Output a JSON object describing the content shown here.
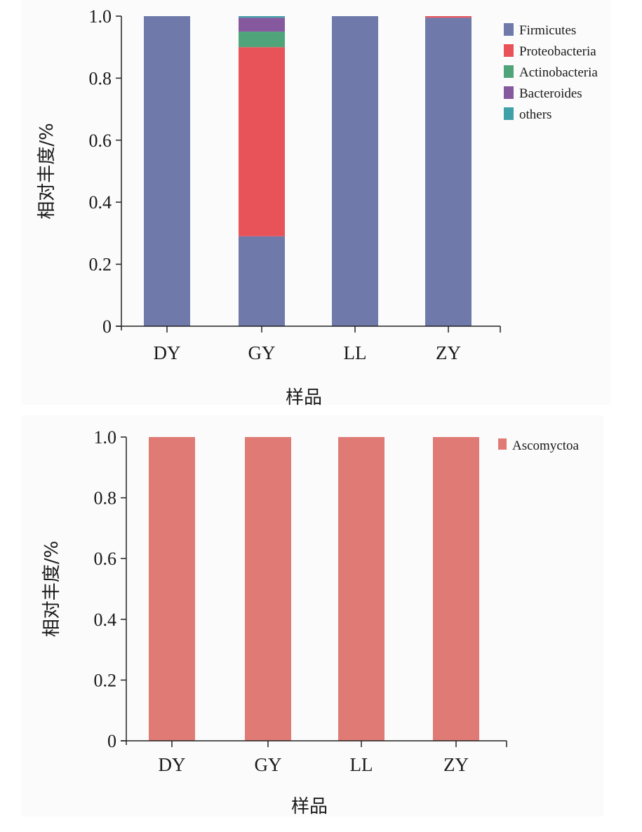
{
  "chart_data": [
    {
      "type": "bar",
      "stacked": true,
      "title": "",
      "xlabel": "样品",
      "ylabel": "相对丰度/%",
      "ylim": [
        0,
        1.0
      ],
      "yticks": [
        "0",
        "0.2",
        "0.4",
        "0.6",
        "0.8",
        "1.0"
      ],
      "ytick_values": [
        0,
        0.2,
        0.4,
        0.6,
        0.8,
        1.0
      ],
      "categories": [
        "DY",
        "GY",
        "LL",
        "ZY"
      ],
      "legend_position": "top-right",
      "grid": false,
      "series": [
        {
          "name": "Firmicutes",
          "color": "#6f7aab",
          "values": [
            1.0,
            0.29,
            1.0,
            0.995
          ]
        },
        {
          "name": "Proteobacteria",
          "color": "#e8535a",
          "values": [
            0,
            0.61,
            0,
            0.005
          ]
        },
        {
          "name": "Actinobacteria",
          "color": "#4fa47a",
          "values": [
            0,
            0.05,
            0,
            0
          ]
        },
        {
          "name": "Bacteroides",
          "color": "#86599f",
          "values": [
            0,
            0.045,
            0,
            0
          ]
        },
        {
          "name": "others",
          "color": "#3fa0a8",
          "values": [
            0,
            0.005,
            0,
            0
          ]
        }
      ]
    },
    {
      "type": "bar",
      "stacked": true,
      "title": "",
      "xlabel": "样品",
      "ylabel": "相对丰度/%",
      "ylim": [
        0,
        1.0
      ],
      "yticks": [
        "0",
        "0.2",
        "0.4",
        "0.6",
        "0.8",
        "1.0"
      ],
      "ytick_values": [
        0,
        0.2,
        0.4,
        0.6,
        0.8,
        1.0
      ],
      "categories": [
        "DY",
        "GY",
        "LL",
        "ZY"
      ],
      "legend_position": "top-right",
      "grid": false,
      "series": [
        {
          "name": "Ascomyctoa",
          "color": "#e07a74",
          "values": [
            1.0,
            1.0,
            1.0,
            1.0
          ]
        }
      ]
    }
  ]
}
